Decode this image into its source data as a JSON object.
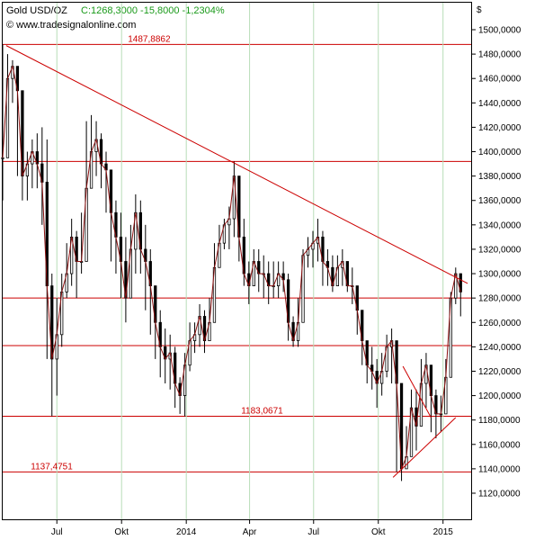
{
  "header": {
    "instrument": "Gold USD/OZ",
    "quote": "C:1268,3000 -15,8000 -1,2304%",
    "source": "© www.tradesignalonline.com"
  },
  "colors": {
    "accent_red": "#cc0000",
    "quote_green": "#1a9a1a",
    "candle_up": "#ffffff",
    "candle_down": "#000000",
    "frame": "#000000"
  },
  "chart_data": {
    "type": "line",
    "title": "Gold USD/OZ",
    "xlabel": "",
    "ylabel": "$",
    "currency_label": "$",
    "x_ticks": [
      "Jul",
      "Okt",
      "2014",
      "Apr",
      "Jul",
      "Okt",
      "2015"
    ],
    "x_tick_dates": [
      "2013-07-01",
      "2013-10-01",
      "2014-01-01",
      "2014-04-01",
      "2014-07-01",
      "2014-10-01",
      "2015-01-01"
    ],
    "xlim": [
      "2013-04-15",
      "2015-02-10"
    ],
    "ylim": [
      1100,
      1510
    ],
    "y_ticks": [
      "1500,0000",
      "1480,0000",
      "1460,0000",
      "1440,0000",
      "1420,0000",
      "1400,0000",
      "1380,0000",
      "1360,0000",
      "1340,0000",
      "1320,0000",
      "1300,0000",
      "1280,0000",
      "1260,0000",
      "1240,0000",
      "1220,0000",
      "1200,0000",
      "1180,0000",
      "1160,0000",
      "1140,0000",
      "1120,0000"
    ],
    "y_tick_values": [
      1500,
      1480,
      1460,
      1440,
      1420,
      1400,
      1380,
      1360,
      1340,
      1320,
      1300,
      1280,
      1260,
      1240,
      1220,
      1200,
      1180,
      1160,
      1140,
      1120
    ],
    "grid": false,
    "series": [
      {
        "style": "candlestick-approx",
        "x": [
          "2013-04-15",
          "2013-04-22",
          "2013-04-29",
          "2013-05-06",
          "2013-05-13",
          "2013-05-20",
          "2013-05-27",
          "2013-06-03",
          "2013-06-10",
          "2013-06-17",
          "2013-06-24",
          "2013-07-01",
          "2013-07-08",
          "2013-07-15",
          "2013-07-22",
          "2013-07-29",
          "2013-08-05",
          "2013-08-12",
          "2013-08-19",
          "2013-08-26",
          "2013-09-02",
          "2013-09-09",
          "2013-09-16",
          "2013-09-23",
          "2013-09-30",
          "2013-10-07",
          "2013-10-14",
          "2013-10-21",
          "2013-10-28",
          "2013-11-04",
          "2013-11-11",
          "2013-11-18",
          "2013-11-25",
          "2013-12-02",
          "2013-12-09",
          "2013-12-16",
          "2013-12-23",
          "2013-12-30",
          "2014-01-06",
          "2014-01-13",
          "2014-01-20",
          "2014-01-27",
          "2014-02-03",
          "2014-02-10",
          "2014-02-17",
          "2014-02-24",
          "2014-03-03",
          "2014-03-10",
          "2014-03-17",
          "2014-03-24",
          "2014-03-31",
          "2014-04-07",
          "2014-04-14",
          "2014-04-21",
          "2014-04-28",
          "2014-05-05",
          "2014-05-12",
          "2014-05-19",
          "2014-05-26",
          "2014-06-02",
          "2014-06-09",
          "2014-06-16",
          "2014-06-23",
          "2014-06-30",
          "2014-07-07",
          "2014-07-14",
          "2014-07-21",
          "2014-07-28",
          "2014-08-04",
          "2014-08-11",
          "2014-08-18",
          "2014-08-25",
          "2014-09-01",
          "2014-09-08",
          "2014-09-15",
          "2014-09-22",
          "2014-09-29",
          "2014-10-06",
          "2014-10-13",
          "2014-10-20",
          "2014-10-27",
          "2014-11-03",
          "2014-11-10",
          "2014-11-17",
          "2014-11-24",
          "2014-12-01",
          "2014-12-08",
          "2014-12-15",
          "2014-12-22",
          "2014-12-29",
          "2015-01-05",
          "2015-01-12",
          "2015-01-19",
          "2015-01-26"
        ],
        "y": [
          1395,
          1460,
          1470,
          1450,
          1380,
          1390,
          1400,
          1390,
          1375,
          1290,
          1230,
          1250,
          1285,
          1300,
          1330,
          1310,
          1310,
          1370,
          1400,
          1410,
          1390,
          1385,
          1350,
          1330,
          1310,
          1280,
          1320,
          1350,
          1320,
          1310,
          1290,
          1260,
          1240,
          1230,
          1235,
          1210,
          1200,
          1225,
          1245,
          1250,
          1265,
          1245,
          1260,
          1305,
          1325,
          1340,
          1345,
          1380,
          1330,
          1300,
          1290,
          1310,
          1300,
          1300,
          1290,
          1290,
          1300,
          1295,
          1260,
          1245,
          1260,
          1315,
          1320,
          1325,
          1330,
          1310,
          1305,
          1290,
          1305,
          1310,
          1290,
          1290,
          1270,
          1245,
          1225,
          1220,
          1210,
          1220,
          1240,
          1245,
          1210,
          1140,
          1150,
          1190,
          1175,
          1210,
          1225,
          1200,
          1185,
          1185,
          1215,
          1280,
          1300,
          1285
        ],
        "high": [
          1487.8862,
          1480,
          1475,
          1465,
          1420,
          1400,
          1410,
          1415,
          1420,
          1410,
          1300,
          1280,
          1300,
          1325,
          1345,
          1335,
          1350,
          1425,
          1430,
          1425,
          1415,
          1400,
          1380,
          1360,
          1350,
          1330,
          1340,
          1365,
          1360,
          1340,
          1320,
          1290,
          1270,
          1255,
          1250,
          1240,
          1215,
          1235,
          1260,
          1260,
          1275,
          1270,
          1280,
          1325,
          1340,
          1345,
          1355,
          1392,
          1370,
          1345,
          1310,
          1320,
          1320,
          1315,
          1310,
          1310,
          1310,
          1310,
          1300,
          1265,
          1280,
          1320,
          1330,
          1335,
          1345,
          1335,
          1320,
          1315,
          1315,
          1320,
          1310,
          1305,
          1290,
          1260,
          1245,
          1240,
          1230,
          1235,
          1250,
          1255,
          1245,
          1190,
          1175,
          1205,
          1205,
          1230,
          1235,
          1225,
          1205,
          1200,
          1230,
          1285,
          1305,
          1300
        ],
        "low": [
          1360,
          1430,
          1440,
          1380,
          1360,
          1360,
          1370,
          1370,
          1340,
          1230,
          1183.0671,
          1200,
          1240,
          1280,
          1290,
          1280,
          1300,
          1340,
          1370,
          1380,
          1370,
          1350,
          1310,
          1300,
          1280,
          1260,
          1280,
          1300,
          1300,
          1270,
          1250,
          1230,
          1215,
          1210,
          1205,
          1190,
          1185,
          1183.0671,
          1220,
          1235,
          1240,
          1235,
          1250,
          1285,
          1310,
          1320,
          1320,
          1330,
          1310,
          1290,
          1275,
          1290,
          1285,
          1280,
          1275,
          1280,
          1280,
          1285,
          1245,
          1240,
          1240,
          1270,
          1305,
          1305,
          1310,
          1290,
          1290,
          1285,
          1290,
          1290,
          1285,
          1275,
          1250,
          1225,
          1210,
          1205,
          1190,
          1200,
          1215,
          1210,
          1137.4751,
          1130,
          1140,
          1150,
          1155,
          1175,
          1190,
          1170,
          1165,
          1170,
          1205,
          1260,
          1275,
          1265
        ]
      }
    ],
    "annotations": {
      "horizontal_levels": [
        {
          "value": 1487.8862,
          "label": "1487,8862"
        },
        {
          "value": 1392,
          "label": ""
        },
        {
          "value": 1280,
          "label": ""
        },
        {
          "value": 1241,
          "label": ""
        },
        {
          "value": 1183.0671,
          "label": "1183,0671"
        },
        {
          "value": 1137.4751,
          "label": "1137,4751"
        }
      ],
      "trendlines": [
        {
          "from": {
            "x": "2013-04-20",
            "y": 1487
          },
          "to": {
            "x": "2015-02-05",
            "y": 1292
          }
        },
        {
          "from": {
            "x": "2014-10-22",
            "y": 1133
          },
          "to": {
            "x": "2015-01-19",
            "y": 1182
          }
        },
        {
          "from": {
            "x": "2014-11-05",
            "y": 1224
          },
          "to": {
            "x": "2014-12-15",
            "y": 1182
          }
        }
      ],
      "level_labels": [
        {
          "text": "1487,8862",
          "x": "2013-10-10",
          "value": 1487.8862
        },
        {
          "text": "1183,0671",
          "x": "2014-03-20",
          "value": 1183.0671
        },
        {
          "text": "1137,4751",
          "x": "2013-05-25",
          "value": 1137.4751
        }
      ]
    }
  }
}
